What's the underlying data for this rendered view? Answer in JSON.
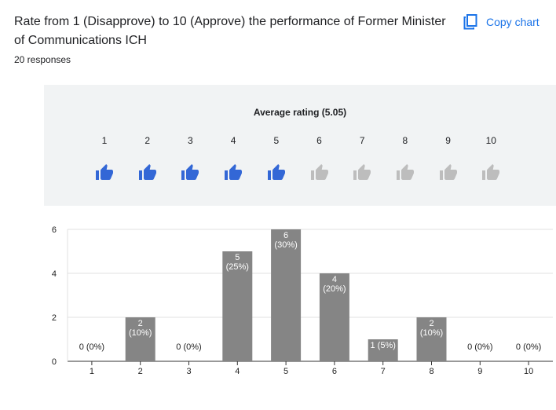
{
  "header": {
    "question": "Rate from 1 (Disapprove) to 10 (Approve) the performance of Former Minister of Communications ICH",
    "responses": "20 responses",
    "copy_label": "Copy chart"
  },
  "rating": {
    "title": "Average rating (5.05)",
    "scale": [
      "1",
      "2",
      "3",
      "4",
      "5",
      "6",
      "7",
      "8",
      "9",
      "10"
    ],
    "filled_count": 5,
    "icon": "thumbs-up-icon",
    "colors": {
      "filled": "#3367d6",
      "empty": "#bdbdbd",
      "panel": "#f1f3f4"
    }
  },
  "chart_data": {
    "type": "bar",
    "categories": [
      "1",
      "2",
      "3",
      "4",
      "5",
      "6",
      "7",
      "8",
      "9",
      "10"
    ],
    "values": [
      0,
      2,
      0,
      5,
      6,
      4,
      1,
      2,
      0,
      0
    ],
    "labels": [
      "0 (0%)",
      "2\n(10%)",
      "0 (0%)",
      "5\n(25%)",
      "6\n(30%)",
      "4\n(20%)",
      "1 (5%)",
      "2\n(10%)",
      "0 (0%)",
      "0 (0%)"
    ],
    "yticks": [
      "0",
      "2",
      "4",
      "6"
    ],
    "ylim": [
      0,
      6
    ],
    "title": "",
    "xlabel": "",
    "ylabel": "",
    "grid": true,
    "bar_color": "#858585"
  }
}
